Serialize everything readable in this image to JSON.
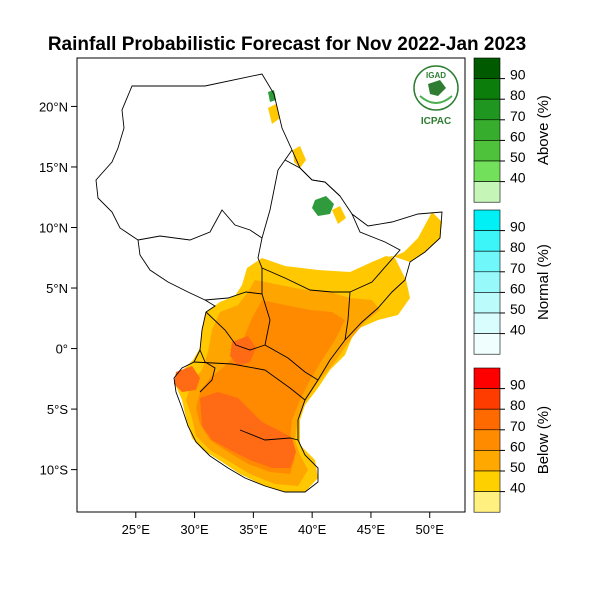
{
  "title": "Rainfall Probabilistic Forecast for Nov 2022-Jan 2023",
  "logo": {
    "top_text": "IGAD",
    "bottom_text": "ICPAC"
  },
  "map": {
    "lon_range": [
      20,
      53
    ],
    "lat_range": [
      -13.5,
      24
    ],
    "x_ticks": [
      {
        "lon": 25,
        "label": "25°E"
      },
      {
        "lon": 30,
        "label": "30°E"
      },
      {
        "lon": 35,
        "label": "35°E"
      },
      {
        "lon": 40,
        "label": "40°E"
      },
      {
        "lon": 45,
        "label": "45°E"
      },
      {
        "lon": 50,
        "label": "50°E"
      }
    ],
    "y_ticks": [
      {
        "lat": 20,
        "label": "20°N"
      },
      {
        "lat": 15,
        "label": "15°N"
      },
      {
        "lat": 10,
        "label": "10°N"
      },
      {
        "lat": 5,
        "label": "5°N"
      },
      {
        "lat": 0,
        "label": "0°"
      },
      {
        "lat": -5,
        "label": "5°S"
      },
      {
        "lat": -10,
        "label": "10°S"
      }
    ]
  },
  "legend": [
    {
      "title": "Above (%)",
      "levels": [
        "90",
        "80",
        "70",
        "60",
        "50",
        "40"
      ],
      "colors": [
        "#005a00",
        "#0b7d0b",
        "#1f961f",
        "#37ad2d",
        "#4ec23a",
        "#73e05c",
        "#c6f5b8"
      ]
    },
    {
      "title": "Normal (%)",
      "levels": [
        "90",
        "80",
        "70",
        "60",
        "50",
        "40"
      ],
      "colors": [
        "#00f0f5",
        "#3cf5f8",
        "#70f7fa",
        "#98f9fb",
        "#bcfbfc",
        "#d9fcfd",
        "#f0fefe"
      ]
    },
    {
      "title": "Below (%)",
      "levels": [
        "90",
        "80",
        "70",
        "60",
        "50",
        "40"
      ],
      "colors": [
        "#ff0000",
        "#ff3c00",
        "#ff6a00",
        "#ff8c00",
        "#ffa800",
        "#ffd000",
        "#fff080"
      ]
    }
  ],
  "colors": {
    "below_50": "#ffc800",
    "below_60": "#ffa500",
    "below_65": "#ff8a00",
    "below_70": "#ff6a14",
    "above_green": "#2f9b3c",
    "border": "#000000",
    "land": "#ffffff"
  }
}
